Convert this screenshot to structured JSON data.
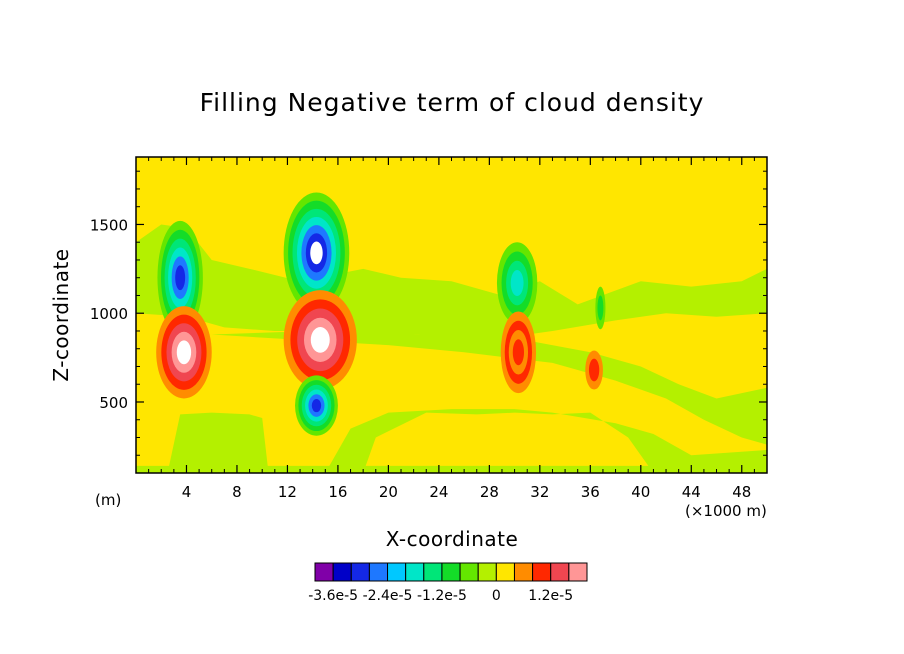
{
  "chart_data": {
    "type": "heatmap",
    "title": "Filling Negative term of cloud density",
    "xlabel": "X-coordinate",
    "ylabel": "Z-coordinate",
    "x_unit_left": "(m)",
    "x_unit_right": "(×1000 m)",
    "xlim": [
      0,
      50
    ],
    "ylim": [
      100,
      1880
    ],
    "x_ticks": [
      4,
      8,
      12,
      16,
      20,
      24,
      28,
      32,
      36,
      40,
      44,
      48
    ],
    "x_tick_labels": [
      "4",
      "8",
      "12",
      "16",
      "20",
      "24",
      "28",
      "32",
      "36",
      "40",
      "44",
      "48"
    ],
    "y_ticks": [
      500,
      1000,
      1500
    ],
    "y_tick_labels": [
      "500",
      "1000",
      "1500"
    ],
    "colorbar": {
      "levels": 15,
      "colors": [
        "#8000a8",
        "#0000c8",
        "#1428e6",
        "#1e78ff",
        "#00c8ff",
        "#00e6c8",
        "#00e678",
        "#14dc28",
        "#64e600",
        "#b4f000",
        "#ffe600",
        "#ff8c00",
        "#ff2800",
        "#f04650",
        "#ff9696"
      ],
      "tick_labels": [
        "-3.6e-5",
        "-2.4e-5",
        "-1.2e-5",
        "0",
        "1.2e-5"
      ],
      "tick_level_index": [
        1,
        4,
        7,
        10,
        13
      ]
    },
    "features": [
      {
        "x": 3.6,
        "z": 1200,
        "sign": "negative",
        "peak": "-2.4e-5"
      },
      {
        "x": 3.8,
        "z": 780,
        "sign": "positive",
        "peak": "> 1.2e-5"
      },
      {
        "x": 14.3,
        "z": 1350,
        "sign": "negative",
        "peak": "< -3.6e-5"
      },
      {
        "x": 14.5,
        "z": 850,
        "sign": "positive",
        "peak": "> 1.2e-5"
      },
      {
        "x": 14.3,
        "z": 480,
        "sign": "negative",
        "peak": "< -3.6e-5"
      },
      {
        "x": 30.2,
        "z": 1150,
        "sign": "negative",
        "peak": "-1.2e-5"
      },
      {
        "x": 30.2,
        "z": 780,
        "sign": "positive",
        "peak": "1.2e-5"
      },
      {
        "x": 36.3,
        "z": 680,
        "sign": "positive",
        "peak": "6e-6"
      }
    ]
  }
}
